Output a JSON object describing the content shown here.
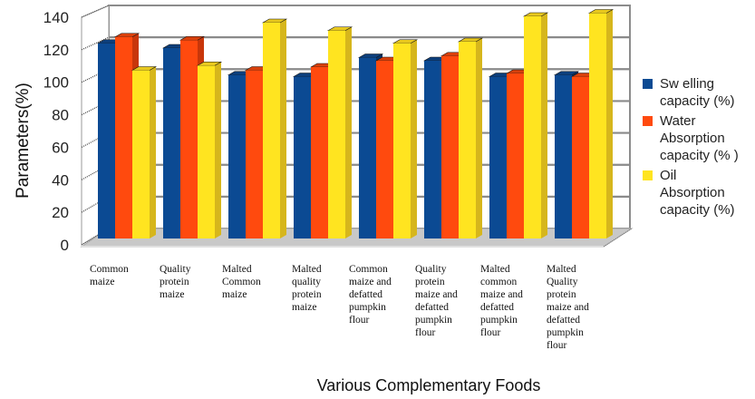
{
  "chart_data": {
    "type": "bar",
    "style": "3d-clustered-column",
    "title": "",
    "xlabel": "Various Complementary Foods",
    "ylabel": "Parameters(%)",
    "ylim": [
      0,
      140
    ],
    "yticks": [
      0,
      20,
      40,
      60,
      80,
      100,
      120,
      140
    ],
    "grid": true,
    "legend_position": "right",
    "categories": [
      "Common maize",
      "Quality protein maize",
      "Malted Common maize",
      "Malted quality protein maize",
      "Common maize and defatted pumpkin flour",
      "Quality protein maize and defatted pumpkin flour",
      "Malted common maize and defatted pumpkin flour",
      "Malted Quality protein maize and defatted pumpkin flour"
    ],
    "category_label_lines": [
      [
        "Common",
        "maize"
      ],
      [
        " Quality",
        "protein",
        "maize"
      ],
      [
        "Malted",
        "Common",
        "maize"
      ],
      [
        "Malted",
        "quality",
        "protein",
        "maize"
      ],
      [
        "Common",
        "maize and",
        "defatted",
        "pumpkin",
        "flour"
      ],
      [
        "Quality",
        "protein",
        "maize and",
        "defatted",
        "pumpkin",
        "flour"
      ],
      [
        "Malted",
        "common",
        "maize and",
        "defatted",
        "pumpkin",
        "flour"
      ],
      [
        "Malted",
        "Quality",
        "protein",
        "maize and",
        "defatted",
        "pumpkin",
        "flour"
      ]
    ],
    "series": [
      {
        "name": "Swelling capacity (%)",
        "legend_text": "Sw elling\ncapacity (%)",
        "color": "#0b4a93",
        "side_color": "#07346a",
        "top_color": "#0d3f7c",
        "values": [
          123,
          120,
          103,
          102,
          114,
          112,
          102,
          103
        ]
      },
      {
        "name": "Water Absorption capacity (%)",
        "legend_text": "Water\nAbsorption\ncapacity (% )",
        "color": "#ff4a0e",
        "side_color": "#c8360a",
        "top_color": "#d8400c",
        "values": [
          127,
          125,
          106,
          108,
          112,
          115,
          104,
          102
        ]
      },
      {
        "name": "Oil Absorption capacity (%)",
        "legend_text": "Oil\nAbsorption\ncapacity (%)",
        "color": "#ffe420",
        "side_color": "#d6b61c",
        "top_color": "#e8c81e",
        "values": [
          106,
          109,
          136,
          131,
          123,
          124,
          140,
          142
        ]
      }
    ]
  }
}
